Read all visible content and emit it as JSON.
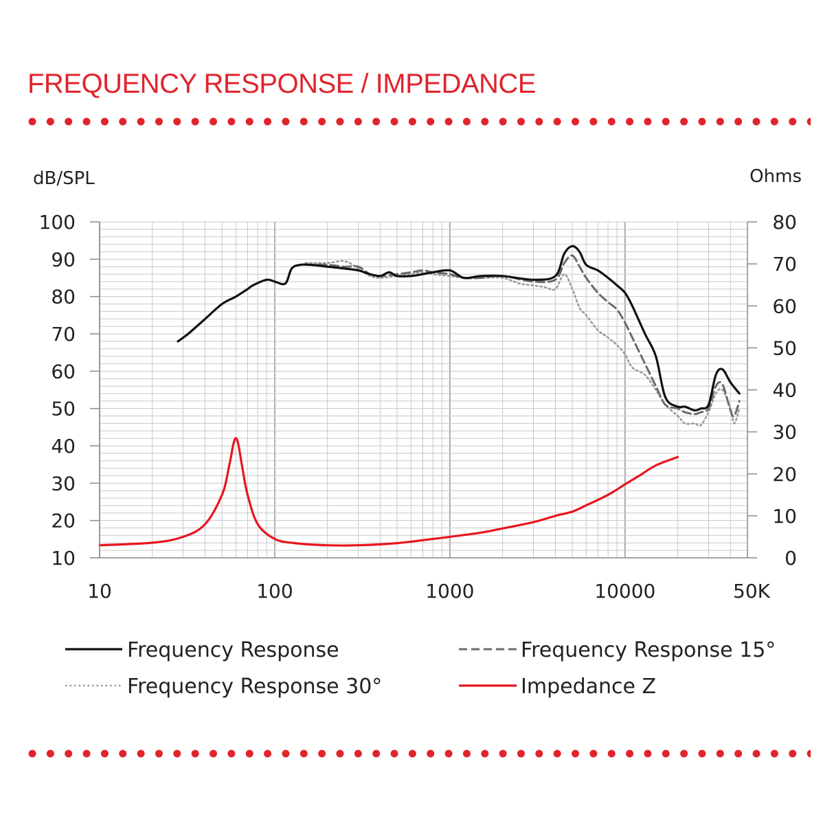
{
  "page": {
    "title": "FREQUENCY RESPONSE / IMPEDANCE"
  },
  "colors": {
    "accent": "#e0242c",
    "fr": "#111111",
    "fr15": "#6a6a6a",
    "fr30": "#9a9a9a",
    "impedance": "#e8141e",
    "grid": "#c8c8c8"
  },
  "chart_data": {
    "type": "line",
    "x_scale": "log",
    "xlim": [
      10,
      50000
    ],
    "ylim": [
      10,
      100
    ],
    "y2lim": [
      0,
      80
    ],
    "ylabel": "dB/SPL",
    "y2label": "Ohms",
    "grid": true,
    "legend_position": "bottom",
    "x_ticks": [
      "10",
      "100",
      "1000",
      "10000",
      "50K"
    ],
    "x_tick_values": [
      10,
      100,
      1000,
      10000,
      50000
    ],
    "y_ticks": [
      "100",
      "90",
      "80",
      "70",
      "60",
      "50",
      "40",
      "30",
      "20",
      "10"
    ],
    "y_tick_values": [
      100,
      90,
      80,
      70,
      60,
      50,
      40,
      30,
      20,
      10
    ],
    "y2_ticks": [
      "80",
      "70",
      "60",
      "50",
      "40",
      "30",
      "20",
      "10",
      "0"
    ],
    "y2_tick_values": [
      80,
      70,
      60,
      50,
      40,
      30,
      20,
      10,
      0
    ],
    "series": [
      {
        "name": "Frequency Response",
        "axis": "left",
        "style": "solid",
        "x": [
          28,
          32,
          40,
          50,
          60,
          70,
          75,
          90,
          100,
          115,
          125,
          140,
          160,
          200,
          250,
          300,
          350,
          400,
          450,
          500,
          600,
          700,
          800,
          1000,
          1200,
          1500,
          2000,
          3000,
          4000,
          4500,
          5000,
          5500,
          6000,
          7000,
          8000,
          9000,
          10000,
          11000,
          13000,
          15000,
          17000,
          20000,
          22000,
          25000,
          27000,
          30000,
          33000,
          36000,
          40000,
          45000
        ],
        "y": [
          68,
          70,
          74,
          78,
          80,
          82,
          83,
          84.5,
          84,
          83.5,
          87.5,
          88.5,
          88.5,
          88,
          87.5,
          87,
          86,
          85.5,
          86.5,
          85.5,
          85.5,
          86,
          86.5,
          87,
          85,
          85.5,
          85.5,
          84.5,
          85.5,
          91.5,
          93.5,
          92,
          88.5,
          87,
          85,
          83,
          81,
          77.5,
          70,
          64,
          53,
          50.5,
          50.5,
          49.5,
          50,
          51,
          59,
          60.5,
          57,
          54
        ]
      },
      {
        "name": "Frequency Response 15°",
        "axis": "left",
        "style": "dashed",
        "x": [
          150,
          200,
          250,
          300,
          350,
          400,
          500,
          600,
          700,
          800,
          1000,
          1200,
          1500,
          2000,
          3000,
          4000,
          4500,
          5000,
          5500,
          6000,
          7000,
          8000,
          9000,
          10000,
          11000,
          13000,
          15000,
          17000,
          20000,
          22000,
          25000,
          27000,
          30000,
          33000,
          36000,
          40000,
          42000,
          45000
        ],
        "y": [
          88.5,
          88.5,
          88,
          88,
          86,
          85.5,
          86,
          86.5,
          87,
          86.5,
          86,
          85,
          85,
          85.5,
          84,
          84.5,
          89,
          91,
          88,
          85,
          81,
          78.5,
          76.5,
          73,
          69,
          62,
          56,
          51,
          50,
          49,
          48.5,
          49,
          50,
          56,
          56.5,
          49.5,
          48,
          52
        ]
      },
      {
        "name": "Frequency Response 30°",
        "axis": "left",
        "style": "dotted",
        "x": [
          150,
          200,
          250,
          300,
          350,
          400,
          500,
          600,
          700,
          800,
          1000,
          1200,
          1500,
          2000,
          2500,
          3000,
          3500,
          4000,
          4500,
          5000,
          5500,
          6000,
          7000,
          8000,
          9000,
          10000,
          11000,
          13000,
          15000,
          17000,
          20000,
          22000,
          25000,
          27000,
          30000,
          33000,
          36000,
          40000,
          42000,
          45000
        ],
        "y": [
          89,
          89,
          89.5,
          87.5,
          85.5,
          85,
          85.5,
          86,
          86.5,
          86,
          85.5,
          85,
          85,
          85,
          83.5,
          83,
          82.5,
          82,
          86,
          82,
          77,
          75,
          71,
          69,
          67,
          64.5,
          61,
          59,
          55,
          51,
          48,
          46,
          46,
          45.5,
          49,
          54,
          55,
          50,
          46,
          50
        ]
      },
      {
        "name": "Impedance Z",
        "axis": "right",
        "style": "solid",
        "x": [
          10,
          20,
          30,
          40,
          50,
          55,
          58,
          60,
          62,
          65,
          70,
          80,
          100,
          130,
          200,
          300,
          500,
          800,
          1000,
          1500,
          2000,
          3000,
          4000,
          5000,
          6000,
          8000,
          10000,
          12000,
          15000,
          20000
        ],
        "y": [
          3,
          3.6,
          5,
          8,
          15,
          22,
          27,
          28.5,
          27,
          22,
          15,
          8,
          4.5,
          3.5,
          3,
          3,
          3.5,
          4.5,
          5,
          6,
          7,
          8.5,
          10,
          11,
          12.5,
          15,
          17.5,
          19.5,
          22,
          24
        ]
      }
    ]
  }
}
